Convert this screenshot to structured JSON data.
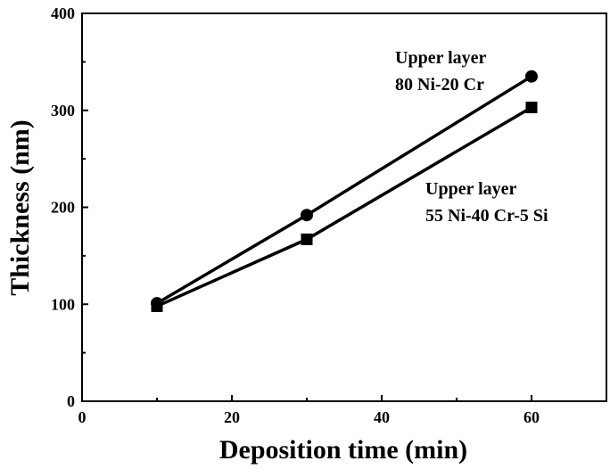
{
  "chart_data": {
    "type": "line",
    "title": "",
    "xlabel": "Deposition time (min)",
    "ylabel": "Thickness (nm)",
    "xlim": [
      0,
      70
    ],
    "ylim": [
      0,
      400
    ],
    "xticks": [
      0,
      20,
      40,
      60
    ],
    "yticks": [
      0,
      100,
      200,
      300,
      400
    ],
    "x_tick_labels": [
      "0",
      "20",
      "40",
      "60"
    ],
    "y_tick_labels": [
      "0",
      "100",
      "200",
      "300",
      "400"
    ],
    "grid": false,
    "series": [
      {
        "marker": "circle",
        "x": [
          10,
          30,
          60
        ],
        "y": [
          101,
          192,
          335
        ]
      },
      {
        "marker": "square",
        "x": [
          10,
          30,
          60
        ],
        "y": [
          98,
          167,
          303
        ]
      }
    ],
    "annotations": [
      {
        "line1": "Upper layer",
        "line2": "80 Ni-20 Cr"
      },
      {
        "line1": "Upper layer",
        "line2": "55 Ni-40 Cr-5 Si"
      }
    ]
  }
}
